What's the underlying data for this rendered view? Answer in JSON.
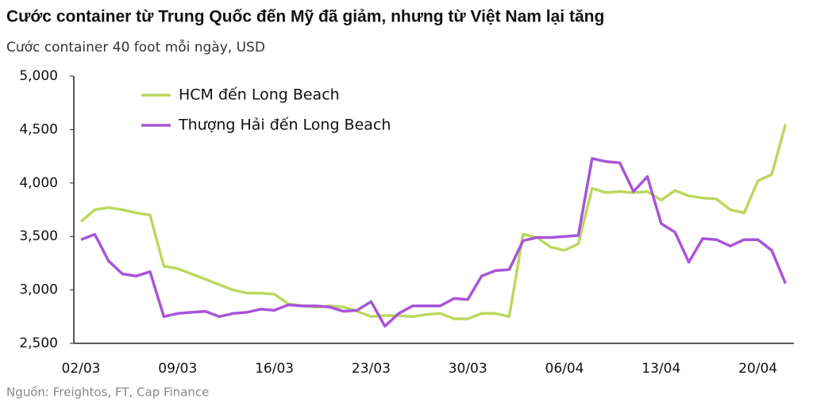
{
  "chart_data": {
    "type": "line",
    "title": "Cước container từ Trung Quốc đến Mỹ đã giảm, nhưng từ Việt Nam lại tăng",
    "subtitle": "Cước container 40 foot mỗi ngày, USD",
    "source": "Nguồn: Freightos, FT, Cap Finance",
    "categories": [
      "02/03",
      null,
      null,
      null,
      null,
      null,
      null,
      "09/03",
      null,
      null,
      null,
      null,
      null,
      null,
      "16/03",
      null,
      null,
      null,
      null,
      null,
      null,
      "23/03",
      null,
      null,
      null,
      null,
      null,
      null,
      "30/03",
      null,
      null,
      null,
      null,
      null,
      null,
      "06/04",
      null,
      null,
      null,
      null,
      null,
      null,
      "13/04",
      null,
      null,
      null,
      null,
      null,
      null,
      "20/04",
      null,
      null
    ],
    "series": [
      {
        "name": "HCM đến Long Beach",
        "color": "#bcd85f",
        "values": [
          3640,
          3750,
          3770,
          3750,
          3720,
          3700,
          3220,
          3200,
          3150,
          3100,
          3050,
          3000,
          2970,
          2970,
          2960,
          2870,
          2850,
          2840,
          2850,
          2840,
          2800,
          2750,
          2760,
          2760,
          2750,
          2770,
          2780,
          2730,
          2730,
          2780,
          2780,
          2750,
          3520,
          3490,
          3400,
          3370,
          3430,
          3950,
          3910,
          3920,
          3910,
          3920,
          3840,
          3930,
          3880,
          3860,
          3850,
          3750,
          3720,
          4020,
          4080,
          4550
        ]
      },
      {
        "name": "Thượng Hải đến Long Beach",
        "color": "#a855d8",
        "values": [
          3470,
          3520,
          3270,
          3150,
          3130,
          3170,
          2750,
          2780,
          2790,
          2800,
          2750,
          2780,
          2790,
          2820,
          2810,
          2860,
          2850,
          2850,
          2840,
          2800,
          2810,
          2890,
          2660,
          2780,
          2850,
          2850,
          2850,
          2920,
          2910,
          3130,
          3180,
          3190,
          3460,
          3490,
          3490,
          3500,
          3510,
          4230,
          4200,
          4190,
          3920,
          4060,
          3620,
          3540,
          3260,
          3480,
          3470,
          3410,
          3470,
          3470,
          3370,
          3060
        ]
      }
    ],
    "ylim": [
      2500,
      5000
    ],
    "yticks": [
      {
        "value": 2500,
        "label": "2,500"
      },
      {
        "value": 3000,
        "label": "3,000"
      },
      {
        "value": 3500,
        "label": "3,500"
      },
      {
        "value": 4000,
        "label": "4,000"
      },
      {
        "value": 4500,
        "label": "4,500"
      },
      {
        "value": 5000,
        "label": "5,000"
      }
    ],
    "legend": "top-left"
  }
}
